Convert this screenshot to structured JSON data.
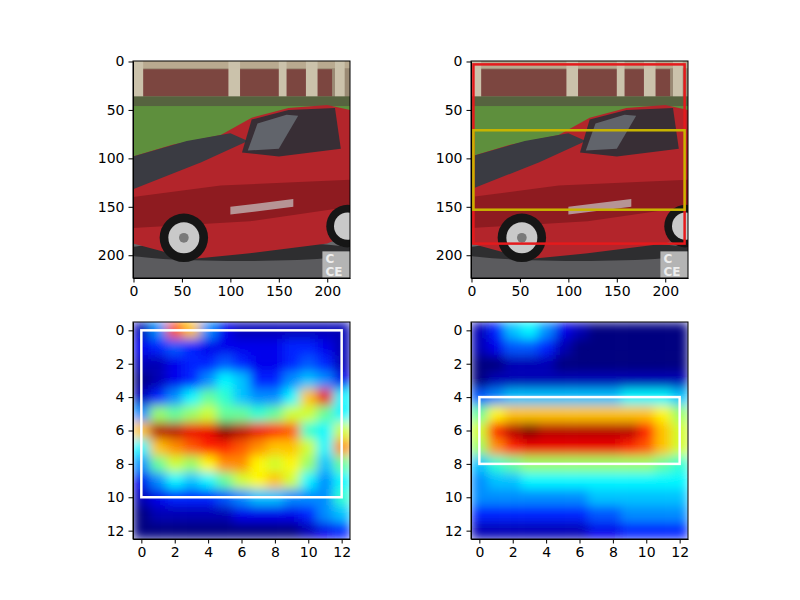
{
  "chart_data": [
    {
      "type": "image",
      "xlim": [
        -0.5,
        223.5
      ],
      "ylim": [
        223.5,
        -0.5
      ],
      "xticks": [
        0,
        50,
        100,
        150,
        200
      ],
      "yticks": [
        0,
        50,
        100,
        150,
        200
      ],
      "annotations": [
        "C",
        "CE"
      ]
    },
    {
      "type": "image",
      "xlim": [
        -0.5,
        223.5
      ],
      "ylim": [
        223.5,
        -0.5
      ],
      "xticks": [
        0,
        50,
        100,
        150,
        200
      ],
      "yticks": [
        0,
        50,
        100,
        150,
        200
      ],
      "annotations": [
        "C",
        "CE"
      ],
      "boxes": [
        {
          "xmin": 2,
          "xmax": 220,
          "ymin": 3,
          "ymax": 188,
          "color": "#e41a1c"
        },
        {
          "xmin": 2,
          "xmax": 220,
          "ymin": 71,
          "ymax": 153,
          "color": "#c8b400"
        }
      ]
    },
    {
      "type": "heatmap",
      "xlim": [
        -0.5,
        12.5
      ],
      "ylim": [
        12.5,
        -0.5
      ],
      "xticks": [
        0,
        2,
        4,
        6,
        8,
        10,
        12
      ],
      "yticks": [
        0,
        2,
        4,
        6,
        8,
        10,
        12
      ],
      "cells": [
        [
          0.1,
          0.3,
          0.8,
          0.7,
          0.3,
          0.15,
          0.1,
          0.1,
          0.1,
          0.1,
          0.1,
          0.1,
          0.1
        ],
        [
          0.15,
          0.2,
          0.25,
          0.2,
          0.15,
          0.15,
          0.15,
          0.15,
          0.15,
          0.2,
          0.2,
          0.15,
          0.1
        ],
        [
          0.1,
          0.1,
          0.15,
          0.2,
          0.2,
          0.25,
          0.2,
          0.15,
          0.15,
          0.2,
          0.25,
          0.2,
          0.1
        ],
        [
          0.05,
          0.1,
          0.15,
          0.2,
          0.3,
          0.4,
          0.35,
          0.2,
          0.2,
          0.3,
          0.35,
          0.3,
          0.15
        ],
        [
          0.1,
          0.2,
          0.3,
          0.4,
          0.5,
          0.45,
          0.35,
          0.3,
          0.3,
          0.4,
          0.7,
          0.9,
          0.4
        ],
        [
          0.3,
          0.55,
          0.5,
          0.55,
          0.6,
          0.5,
          0.5,
          0.45,
          0.5,
          0.6,
          0.6,
          0.5,
          0.4
        ],
        [
          0.7,
          0.95,
          0.95,
          0.9,
          0.9,
          1.0,
          0.95,
          0.9,
          0.85,
          0.8,
          0.45,
          0.4,
          0.6
        ],
        [
          0.4,
          0.7,
          0.75,
          0.8,
          0.85,
          0.85,
          0.8,
          0.75,
          0.7,
          0.7,
          0.6,
          0.4,
          0.75
        ],
        [
          0.3,
          0.5,
          0.6,
          0.55,
          0.65,
          0.75,
          0.75,
          0.65,
          0.6,
          0.65,
          0.55,
          0.35,
          0.5
        ],
        [
          0.15,
          0.3,
          0.4,
          0.35,
          0.4,
          0.5,
          0.6,
          0.65,
          0.7,
          0.6,
          0.4,
          0.3,
          0.4
        ],
        [
          0.1,
          0.15,
          0.2,
          0.2,
          0.2,
          0.25,
          0.3,
          0.35,
          0.35,
          0.3,
          0.3,
          0.3,
          0.45
        ],
        [
          0.05,
          0.1,
          0.1,
          0.1,
          0.1,
          0.1,
          0.15,
          0.15,
          0.15,
          0.15,
          0.2,
          0.3,
          0.35
        ],
        [
          0.05,
          0.05,
          0.05,
          0.05,
          0.05,
          0.05,
          0.05,
          0.05,
          0.05,
          0.05,
          0.1,
          0.15,
          0.2
        ]
      ],
      "boxes": [
        {
          "xmin": 0,
          "xmax": 12,
          "ymin": 0,
          "ymax": 10,
          "color": "#ffffff"
        }
      ]
    },
    {
      "type": "heatmap",
      "xlim": [
        -0.5,
        12.5
      ],
      "ylim": [
        12.5,
        -0.5
      ],
      "xticks": [
        0,
        2,
        4,
        6,
        8,
        10,
        12
      ],
      "yticks": [
        0,
        2,
        4,
        6,
        8,
        10,
        12
      ],
      "cells": [
        [
          0.1,
          0.2,
          0.35,
          0.4,
          0.3,
          0.15,
          0.1,
          0.05,
          0.05,
          0.05,
          0.05,
          0.05,
          0.05
        ],
        [
          0.1,
          0.15,
          0.25,
          0.25,
          0.2,
          0.1,
          0.05,
          0.05,
          0.05,
          0.05,
          0.05,
          0.05,
          0.05
        ],
        [
          0.05,
          0.05,
          0.1,
          0.1,
          0.1,
          0.05,
          0.05,
          0.05,
          0.05,
          0.05,
          0.05,
          0.05,
          0.05
        ],
        [
          0.05,
          0.1,
          0.1,
          0.1,
          0.1,
          0.1,
          0.1,
          0.1,
          0.1,
          0.1,
          0.1,
          0.1,
          0.1
        ],
        [
          0.25,
          0.3,
          0.35,
          0.35,
          0.35,
          0.35,
          0.35,
          0.35,
          0.35,
          0.4,
          0.4,
          0.4,
          0.35
        ],
        [
          0.5,
          0.65,
          0.7,
          0.7,
          0.7,
          0.7,
          0.7,
          0.7,
          0.7,
          0.7,
          0.7,
          0.65,
          0.55
        ],
        [
          0.6,
          0.85,
          0.95,
          1.0,
          0.95,
          0.95,
          0.95,
          0.95,
          0.95,
          0.95,
          0.85,
          0.7,
          0.6
        ],
        [
          0.55,
          0.75,
          0.85,
          0.9,
          0.9,
          0.9,
          0.9,
          0.9,
          0.9,
          0.85,
          0.8,
          0.7,
          0.6
        ],
        [
          0.35,
          0.45,
          0.5,
          0.55,
          0.55,
          0.55,
          0.55,
          0.55,
          0.55,
          0.55,
          0.55,
          0.5,
          0.45
        ],
        [
          0.3,
          0.35,
          0.35,
          0.4,
          0.4,
          0.4,
          0.4,
          0.4,
          0.4,
          0.4,
          0.4,
          0.4,
          0.4
        ],
        [
          0.3,
          0.3,
          0.3,
          0.3,
          0.3,
          0.3,
          0.3,
          0.35,
          0.35,
          0.35,
          0.35,
          0.35,
          0.35
        ],
        [
          0.2,
          0.2,
          0.2,
          0.2,
          0.2,
          0.2,
          0.2,
          0.25,
          0.25,
          0.3,
          0.3,
          0.3,
          0.3
        ],
        [
          0.1,
          0.1,
          0.1,
          0.1,
          0.1,
          0.1,
          0.1,
          0.15,
          0.15,
          0.2,
          0.2,
          0.2,
          0.2
        ]
      ],
      "boxes": [
        {
          "xmin": 0,
          "xmax": 12,
          "ymin": 4,
          "ymax": 8,
          "color": "#ffffff"
        }
      ]
    }
  ]
}
